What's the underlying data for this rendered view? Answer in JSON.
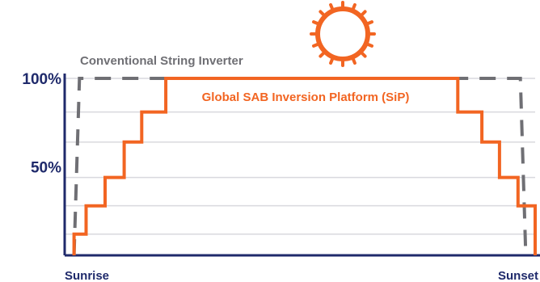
{
  "chart_data": {
    "type": "line",
    "x": [
      "Sunrise",
      "Sunset"
    ],
    "ytick_labels": [
      "100%",
      "50%"
    ],
    "yticks": [
      100,
      50
    ],
    "ylim": [
      0,
      100
    ],
    "grid": true,
    "colors": {
      "axis": "#1f2a6b",
      "grid": "#d9d9de",
      "conventional": "#6f6f74",
      "global": "#f26522",
      "sun": "#f26522"
    },
    "icons": [
      "sun-icon"
    ],
    "series": [
      {
        "name": "Conventional String Inverter",
        "style": "dashed",
        "points": [
          [
            0.0,
            0
          ],
          [
            0.012,
            100
          ],
          [
            0.988,
            100
          ],
          [
            1.0,
            0
          ]
        ]
      },
      {
        "name": "Global SAB Inversion Platform (SiP)",
        "style": "stepped",
        "points": [
          [
            0.0,
            0
          ],
          [
            0.0,
            12
          ],
          [
            0.026,
            12
          ],
          [
            0.026,
            28
          ],
          [
            0.067,
            28
          ],
          [
            0.067,
            44
          ],
          [
            0.108,
            44
          ],
          [
            0.108,
            64
          ],
          [
            0.146,
            64
          ],
          [
            0.146,
            81
          ],
          [
            0.198,
            81
          ],
          [
            0.198,
            100
          ],
          [
            0.828,
            100
          ],
          [
            0.828,
            81
          ],
          [
            0.88,
            81
          ],
          [
            0.88,
            64
          ],
          [
            0.918,
            64
          ],
          [
            0.918,
            44
          ],
          [
            0.958,
            44
          ],
          [
            0.958,
            28
          ],
          [
            0.999,
            28
          ],
          [
            0.999,
            12
          ],
          [
            1.022,
            12
          ],
          [
            1.022,
            0
          ]
        ]
      }
    ]
  }
}
